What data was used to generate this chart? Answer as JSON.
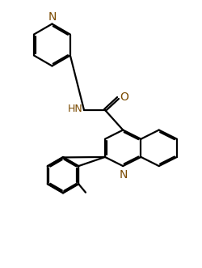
{
  "bg_color": "#ffffff",
  "line_color": "#000000",
  "label_color": "#7a4a00",
  "line_width": 1.6,
  "font_size": 9,
  "fig_width": 2.5,
  "fig_height": 3.31,
  "dpi": 100,
  "xlim": [
    0,
    10
  ],
  "ylim": [
    0,
    13.2
  ]
}
